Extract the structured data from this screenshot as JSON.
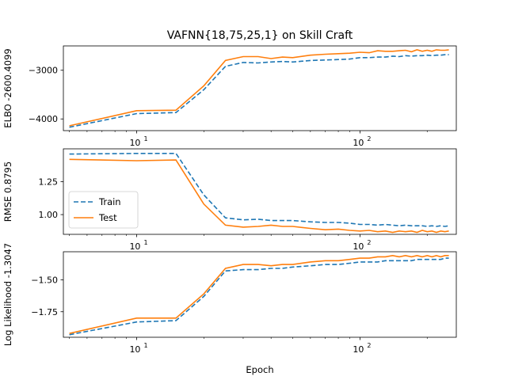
{
  "title": "VAFNN{18,75,25,1} on Skill Craft",
  "colors": {
    "train": "#1f77b4",
    "test": "#ff7f0e"
  },
  "chart_data": [
    {
      "type": "line",
      "ylabel": "ELBO -2600.4099",
      "xscale": "log",
      "xlim": [
        4.7,
        270
      ],
      "ylim": [
        -4240,
        -2500
      ],
      "xticks": [
        {
          "value": 10,
          "label": "10",
          "exp": "1"
        },
        {
          "value": 100,
          "label": "10",
          "exp": "2"
        }
      ],
      "yticks": [
        {
          "value": -4000,
          "label": "−4000"
        },
        {
          "value": -3000,
          "label": "−3000"
        }
      ],
      "series": [
        {
          "name": "Train",
          "style": "dashed",
          "x": [
            5,
            10,
            15,
            20,
            25,
            30,
            35,
            40,
            45,
            50,
            60,
            70,
            80,
            90,
            100,
            110,
            120,
            130,
            140,
            150,
            160,
            170,
            180,
            190,
            200,
            210,
            220,
            230,
            240,
            250
          ],
          "y": [
            -4170,
            -3890,
            -3870,
            -3400,
            -2920,
            -2840,
            -2850,
            -2830,
            -2820,
            -2830,
            -2800,
            -2790,
            -2780,
            -2770,
            -2740,
            -2740,
            -2730,
            -2730,
            -2710,
            -2720,
            -2700,
            -2710,
            -2700,
            -2700,
            -2690,
            -2700,
            -2690,
            -2690,
            -2680,
            -2680
          ]
        },
        {
          "name": "Test",
          "style": "solid",
          "x": [
            5,
            10,
            15,
            20,
            25,
            30,
            35,
            40,
            45,
            50,
            60,
            70,
            80,
            90,
            100,
            110,
            120,
            130,
            140,
            150,
            160,
            170,
            180,
            190,
            200,
            210,
            220,
            230,
            240,
            250
          ],
          "y": [
            -4140,
            -3830,
            -3820,
            -3320,
            -2800,
            -2720,
            -2720,
            -2760,
            -2730,
            -2740,
            -2690,
            -2670,
            -2660,
            -2650,
            -2630,
            -2640,
            -2600,
            -2610,
            -2610,
            -2600,
            -2590,
            -2620,
            -2580,
            -2610,
            -2590,
            -2610,
            -2580,
            -2590,
            -2590,
            -2580
          ]
        }
      ]
    },
    {
      "type": "line",
      "ylabel": "RMSE 0.8795",
      "xscale": "log",
      "xlim": [
        4.7,
        270
      ],
      "ylim": [
        0.85,
        1.5
      ],
      "xticks": [
        {
          "value": 10,
          "label": "10",
          "exp": "1"
        },
        {
          "value": 100,
          "label": "10",
          "exp": "2"
        }
      ],
      "yticks": [
        {
          "value": 1.0,
          "label": "1.00"
        },
        {
          "value": 1.25,
          "label": "1.25"
        }
      ],
      "legend": {
        "position": "lower-left",
        "entries": [
          "Train",
          "Test"
        ]
      },
      "series": [
        {
          "name": "Train",
          "style": "dashed",
          "x": [
            5,
            10,
            15,
            20,
            25,
            30,
            35,
            40,
            45,
            50,
            60,
            70,
            80,
            90,
            100,
            110,
            120,
            130,
            140,
            150,
            160,
            170,
            180,
            190,
            200,
            210,
            220,
            230,
            240,
            250
          ],
          "y": [
            1.46,
            1.465,
            1.465,
            1.15,
            0.975,
            0.96,
            0.965,
            0.955,
            0.955,
            0.955,
            0.945,
            0.94,
            0.94,
            0.935,
            0.925,
            0.925,
            0.92,
            0.925,
            0.92,
            0.915,
            0.92,
            0.915,
            0.915,
            0.915,
            0.91,
            0.915,
            0.91,
            0.915,
            0.91,
            0.915
          ]
        },
        {
          "name": "Test",
          "style": "solid",
          "x": [
            5,
            10,
            15,
            20,
            25,
            30,
            35,
            40,
            45,
            50,
            60,
            70,
            80,
            90,
            100,
            110,
            120,
            130,
            140,
            150,
            160,
            170,
            180,
            190,
            200,
            210,
            220,
            230,
            240,
            250
          ],
          "y": [
            1.42,
            1.41,
            1.415,
            1.08,
            0.92,
            0.905,
            0.91,
            0.92,
            0.91,
            0.91,
            0.895,
            0.885,
            0.89,
            0.88,
            0.875,
            0.88,
            0.87,
            0.875,
            0.865,
            0.875,
            0.87,
            0.875,
            0.865,
            0.88,
            0.87,
            0.875,
            0.865,
            0.875,
            0.87,
            0.875
          ]
        }
      ]
    },
    {
      "type": "line",
      "ylabel": "Log Likelihood -1.3047",
      "xlabel": "Epoch",
      "xscale": "log",
      "xlim": [
        4.7,
        270
      ],
      "ylim": [
        -1.95,
        -1.28
      ],
      "xticks": [
        {
          "value": 10,
          "label": "10",
          "exp": "1"
        },
        {
          "value": 100,
          "label": "10",
          "exp": "2"
        }
      ],
      "yticks": [
        {
          "value": -1.75,
          "label": "−1.75"
        },
        {
          "value": -1.5,
          "label": "−1.50"
        }
      ],
      "series": [
        {
          "name": "Train",
          "style": "dashed",
          "x": [
            5,
            10,
            15,
            20,
            25,
            30,
            35,
            40,
            45,
            50,
            60,
            70,
            80,
            90,
            100,
            110,
            120,
            130,
            140,
            150,
            160,
            170,
            180,
            190,
            200,
            210,
            220,
            230,
            240,
            250
          ],
          "y": [
            -1.93,
            -1.83,
            -1.82,
            -1.63,
            -1.43,
            -1.42,
            -1.42,
            -1.41,
            -1.41,
            -1.4,
            -1.39,
            -1.38,
            -1.38,
            -1.37,
            -1.36,
            -1.36,
            -1.36,
            -1.35,
            -1.35,
            -1.35,
            -1.35,
            -1.35,
            -1.34,
            -1.34,
            -1.34,
            -1.34,
            -1.34,
            -1.34,
            -1.33,
            -1.33
          ]
        },
        {
          "name": "Test",
          "style": "solid",
          "x": [
            5,
            10,
            15,
            20,
            25,
            30,
            35,
            40,
            45,
            50,
            60,
            70,
            80,
            90,
            100,
            110,
            120,
            130,
            140,
            150,
            160,
            170,
            180,
            190,
            200,
            210,
            220,
            230,
            240,
            250
          ],
          "y": [
            -1.92,
            -1.8,
            -1.8,
            -1.61,
            -1.41,
            -1.38,
            -1.38,
            -1.39,
            -1.38,
            -1.38,
            -1.36,
            -1.35,
            -1.35,
            -1.34,
            -1.33,
            -1.33,
            -1.32,
            -1.32,
            -1.31,
            -1.32,
            -1.31,
            -1.32,
            -1.31,
            -1.32,
            -1.31,
            -1.32,
            -1.31,
            -1.32,
            -1.31,
            -1.31
          ]
        }
      ]
    }
  ]
}
